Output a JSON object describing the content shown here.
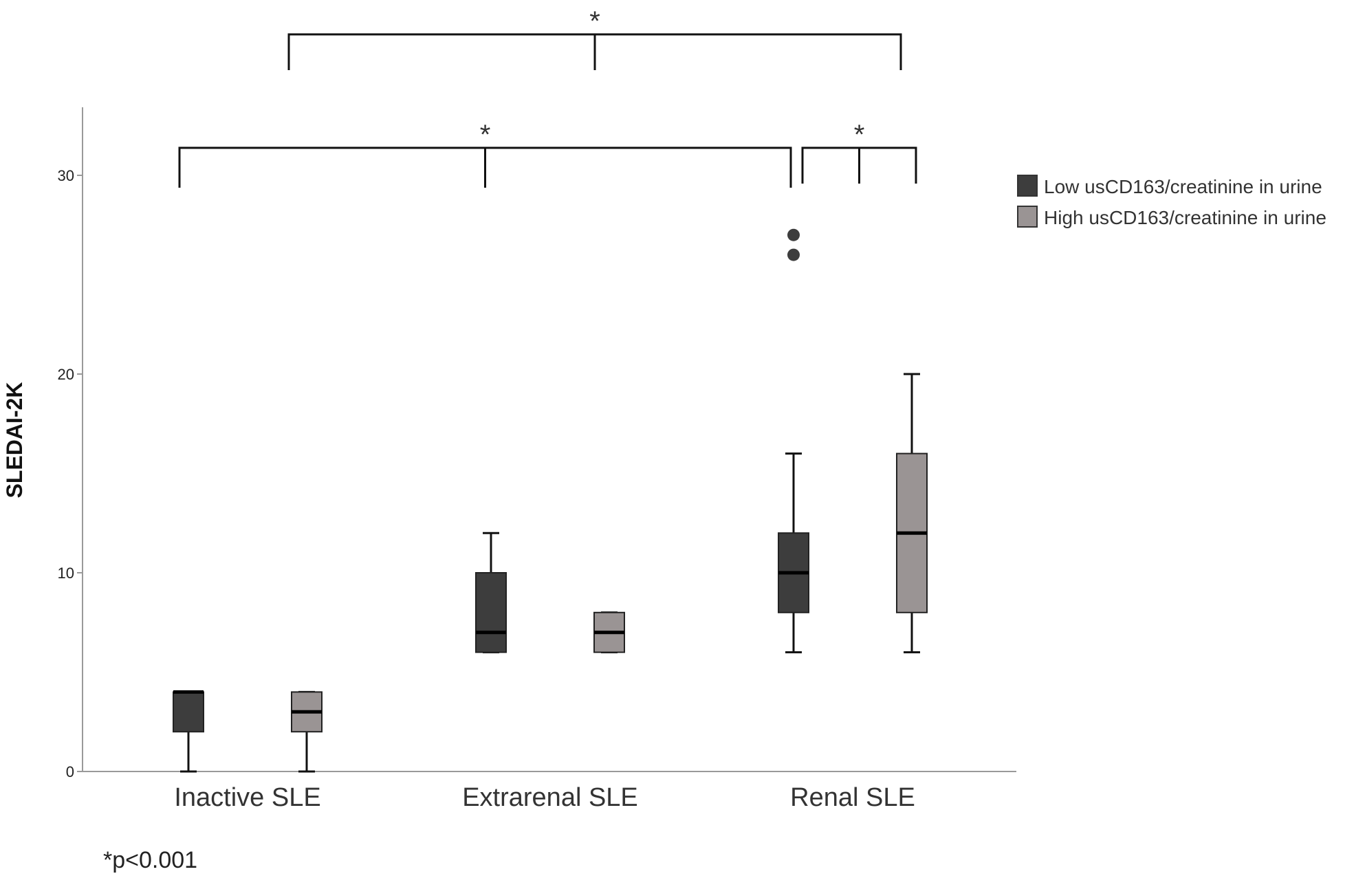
{
  "chart_data": {
    "type": "box",
    "ylabel": "SLEDAI-2K",
    "xlabel": "",
    "ylim": [
      0,
      30
    ],
    "yticks": [
      0,
      10,
      20,
      30
    ],
    "grid": false,
    "legend_position": "top-right",
    "categories": [
      "Inactive SLE",
      "Extrarenal SLE",
      "Renal SLE"
    ],
    "series": [
      {
        "name": "Low usCD163/creatinine in urine",
        "color": "#3d3d3d",
        "boxes": [
          {
            "whisker_low": 0,
            "q1": 2,
            "median": 4,
            "q3": 4,
            "whisker_high": 4,
            "outliers": []
          },
          {
            "whisker_low": 6,
            "q1": 6,
            "median": 7,
            "q3": 10,
            "whisker_high": 12,
            "outliers": []
          },
          {
            "whisker_low": 6,
            "q1": 8,
            "median": 10,
            "q3": 12,
            "whisker_high": 16,
            "outliers": [
              26,
              27
            ]
          }
        ]
      },
      {
        "name": "High usCD163/creatinine in urine",
        "color": "#9a9494",
        "boxes": [
          {
            "whisker_low": 0,
            "q1": 2,
            "median": 3,
            "q3": 4,
            "whisker_high": 4,
            "outliers": []
          },
          {
            "whisker_low": 6,
            "q1": 6,
            "median": 7,
            "q3": 8,
            "whisker_high": 8,
            "outliers": []
          },
          {
            "whisker_low": 6,
            "q1": 8,
            "median": 12,
            "q3": 16,
            "whisker_high": 20,
            "outliers": []
          }
        ]
      }
    ],
    "significance": [
      {
        "from": "Inactive SLE",
        "to": "Renal SLE",
        "label": "*",
        "level": "top"
      },
      {
        "from": "Inactive SLE",
        "to": "Renal SLE (Low)",
        "label": "*",
        "level": "middle"
      },
      {
        "from": "Renal SLE (Low)",
        "to": "Renal SLE (High)",
        "label": "*",
        "level": "middle"
      }
    ],
    "footnote": "*p<0.001"
  }
}
